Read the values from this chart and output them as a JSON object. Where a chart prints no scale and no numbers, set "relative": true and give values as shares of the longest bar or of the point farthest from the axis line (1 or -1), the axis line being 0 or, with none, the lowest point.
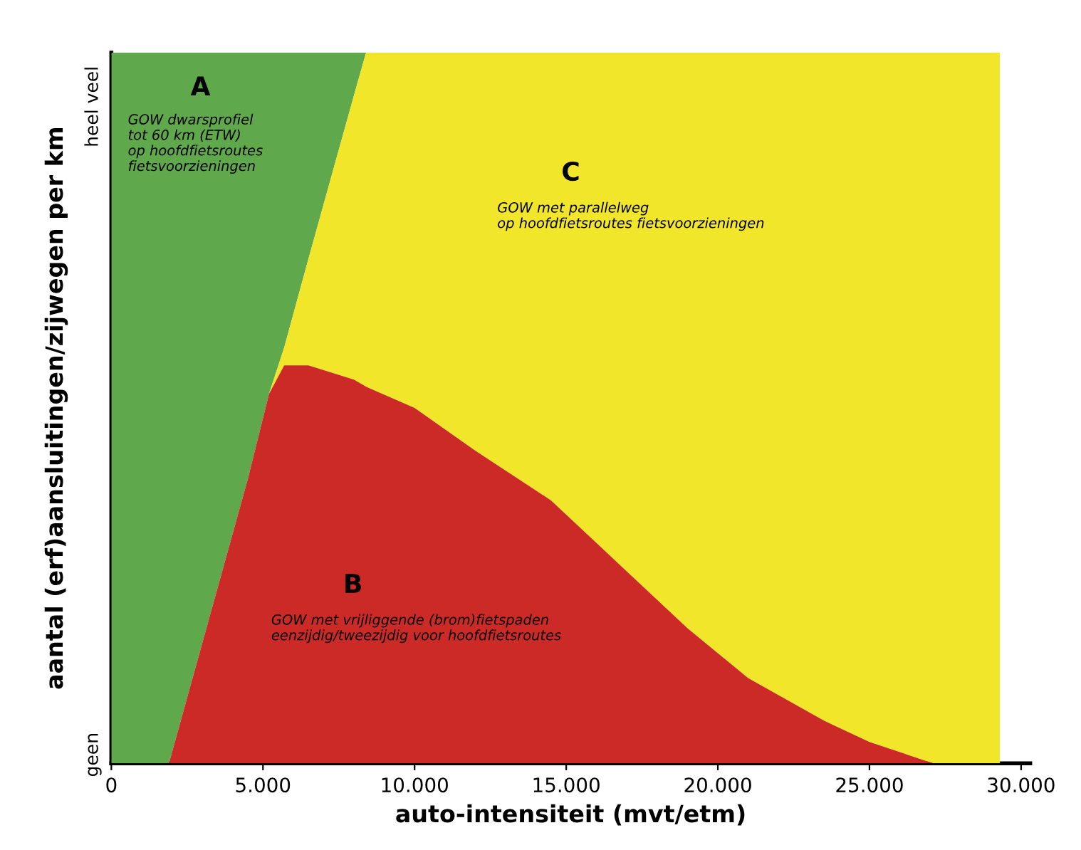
{
  "chart_data": {
    "type": "area",
    "relative": true,
    "stacked": true,
    "xlabel": "auto-intensiteit (mvt/etm)",
    "ylabel": "aantal (erf)aansluitingen/zijwegen per km",
    "xlim": [
      0,
      30300
    ],
    "xticks": [
      0,
      {
        "value": 5000,
        "label": "5.000"
      },
      {
        "value": 10000,
        "label": "10.000"
      },
      {
        "value": 15000,
        "label": "15.000"
      },
      {
        "value": 20000,
        "label": "20.000"
      },
      {
        "value": 25000,
        "label": "25.000"
      },
      {
        "value": 30000,
        "label": "30.000"
      }
    ],
    "x": [
      0,
      1900,
      4500,
      5200,
      5700,
      6500,
      8000,
      8400,
      10000,
      12000,
      14500,
      17000,
      19000,
      21000,
      23500,
      25000,
      27100,
      29300
    ],
    "series": [
      {
        "color": "#cc2a26",
        "values": [
          0,
          0,
          0.4,
          0.52,
          0.56,
          0.56,
          0.54,
          0.53,
          0.5,
          0.44,
          0.37,
          0.27,
          0.19,
          0.12,
          0.06,
          0.03,
          0,
          0
        ]
      },
      {
        "color": "#f2e62a",
        "values": [
          0,
          0,
          0,
          0,
          0.025,
          0.15,
          0.4,
          0.47,
          0.5,
          0.56,
          0.63,
          0.73,
          0.81,
          0.88,
          0.94,
          0.97,
          1,
          1
        ]
      },
      {
        "color": "#5fa84c",
        "x": [
          0,
          1900,
          4500,
          5200,
          5700,
          6500,
          8000,
          8400
        ],
        "values": [
          1,
          1,
          0.6,
          0.48,
          0.415,
          0.29,
          0.06,
          0
        ]
      }
    ],
    "annotations": [
      "A",
      "GOW dwarsprofiel\ntot 60 km (ETW)\nop hoofdfietsroutes\nfietsvoorzieningen",
      "C",
      "GOW met parallelweg\nop hoofdfietsroutes fietsvoorzieningen",
      "B",
      "GOW met vrijliggende (brom)fietspaden\neenzijdig/tweezijdig voor hoofdfietsroutes",
      "geen",
      "heel veel"
    ],
    "grid": false,
    "legend": false
  }
}
